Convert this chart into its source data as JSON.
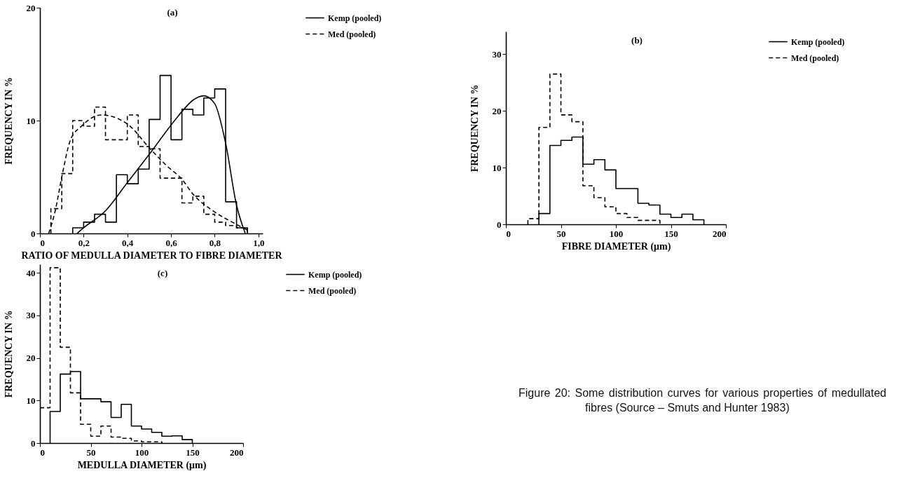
{
  "chart_data": [
    {
      "type": "step",
      "title": "(a)",
      "xlabel": "RATIO OF MEDULLA DIAMETER TO FIBRE DIAMETER",
      "ylabel": "FREQUENCY IN %",
      "xlim": [
        0,
        1.02
      ],
      "xticks": [
        0,
        {
          "value": 0.2,
          "label": "0,2"
        },
        {
          "value": 0.4,
          "label": "0,4"
        },
        {
          "value": 0.6,
          "label": "0,6"
        },
        {
          "value": 0.8,
          "label": "0,8"
        },
        {
          "value": 1,
          "label": "1,0"
        }
      ],
      "ylim": [
        0,
        20
      ],
      "yticks": [
        0,
        10,
        20
      ],
      "legend": "right",
      "series": [
        {
          "name": "Kemp (pooled)",
          "color": "#000000",
          "line_style": "solid",
          "x": [
            0.15,
            0.15,
            0.2,
            0.25,
            0.3,
            0.35,
            0.4,
            0.45,
            0.5,
            0.55,
            0.6,
            0.65,
            0.7,
            0.75,
            0.8,
            0.85,
            0.9,
            0.95
          ],
          "values": [
            0,
            0.5,
            1,
            1.7,
            1,
            5.2,
            4.4,
            5.7,
            10.1,
            14,
            8.3,
            11,
            10.5,
            12,
            12.8,
            2.8,
            0.5,
            0
          ]
        },
        {
          "name": "Med (pooled)",
          "color": "#000000",
          "line_style": "dashed",
          "x": [
            0.05,
            0.05,
            0.1,
            0.15,
            0.2,
            0.25,
            0.3,
            0.35,
            0.4,
            0.45,
            0.5,
            0.55,
            0.6,
            0.65,
            0.7,
            0.75,
            0.8,
            0.85,
            0.9,
            0.95
          ],
          "values": [
            0,
            2.2,
            5.3,
            10,
            9.5,
            11.2,
            8.3,
            8.3,
            10.5,
            7.7,
            7.5,
            4.9,
            4.9,
            2.7,
            3.3,
            1.7,
            1,
            0.7,
            0.5,
            0
          ]
        },
        {
          "type": "line",
          "color": "#000000",
          "line_style": "solid",
          "x": [
            0.17,
            0.2,
            0.3,
            0.4,
            0.5,
            0.6,
            0.65,
            0.7,
            0.75,
            0.8,
            0.85,
            0.9,
            0.94
          ],
          "values": [
            0,
            0.5,
            2,
            4.5,
            7,
            9.6,
            10.8,
            11.8,
            12.2,
            11.5,
            8,
            2.5,
            0
          ]
        },
        {
          "type": "line",
          "color": "#000000",
          "line_style": "dashed",
          "x": [
            0.04,
            0.07,
            0.1,
            0.14,
            0.19,
            0.28,
            0.4,
            0.5,
            0.58,
            0.65,
            0.7,
            0.8,
            0.9,
            0.95
          ],
          "values": [
            0,
            2,
            5,
            8.3,
            9.5,
            10.5,
            9.7,
            7.6,
            6,
            4.8,
            3.5,
            1.9,
            0.8,
            0.3
          ]
        }
      ]
    },
    {
      "type": "step",
      "title": "(b)",
      "xlabel": "FIBRE DIAMETER (μm)",
      "ylabel": "FREQUENCY IN %",
      "xlim": [
        0,
        200
      ],
      "xticks": [
        0,
        50,
        100,
        150,
        200
      ],
      "ylim": [
        0,
        34
      ],
      "yticks": [
        0,
        10,
        20,
        30
      ],
      "legend": "right",
      "annotations": [
        "Figure 20:  Some distribution curves for various properties of medullated fibres (Source – Smuts and Hunter 1983)"
      ],
      "series": [
        {
          "name": "Kemp (pooled)",
          "color": "#000000",
          "line_style": "solid",
          "x": [
            30,
            30,
            40,
            50,
            60,
            70,
            80,
            90,
            100,
            110,
            120,
            130,
            140,
            150,
            160,
            170,
            180
          ],
          "values": [
            0,
            1.9,
            13.9,
            14.8,
            15.4,
            10.6,
            11.4,
            9.6,
            6.3,
            6.3,
            3.7,
            3.4,
            1.8,
            1.2,
            1.8,
            0.8,
            0
          ]
        },
        {
          "name": "Med (pooled)",
          "color": "#000000",
          "line_style": "dashed",
          "x": [
            20,
            20,
            30,
            40,
            50,
            60,
            70,
            80,
            90,
            100,
            110,
            120,
            130,
            140
          ],
          "values": [
            0,
            1,
            17.1,
            26.5,
            19.3,
            18.1,
            6.8,
            4.7,
            3.1,
            1.9,
            1.2,
            0.7,
            0.7,
            0
          ]
        }
      ]
    },
    {
      "type": "step",
      "title": "(c)",
      "xlabel": "MEDULLA DIAMETER (μm)",
      "ylabel": "FREQUENCY IN %",
      "xlim": [
        0,
        200
      ],
      "xticks": [
        0,
        50,
        100,
        150,
        200
      ],
      "ylim": [
        0,
        42
      ],
      "yticks": [
        0,
        10,
        20,
        30,
        40
      ],
      "legend": "right",
      "series": [
        {
          "name": "Kemp (pooled)",
          "color": "#000000",
          "line_style": "solid",
          "x": [
            10,
            10,
            20,
            30,
            40,
            50,
            60,
            70,
            80,
            90,
            100,
            110,
            120,
            130,
            140,
            150
          ],
          "values": [
            0,
            7.4,
            16.2,
            16.8,
            10.4,
            10.4,
            9.7,
            6,
            9.1,
            4,
            3.3,
            2.5,
            1.6,
            1.7,
            0.8,
            0
          ]
        },
        {
          "name": "Med (pooled)",
          "color": "#000000",
          "line_style": "dashed",
          "x": [
            0,
            10,
            20,
            30,
            40,
            50,
            60,
            70,
            80,
            90,
            100,
            110,
            120
          ],
          "values": [
            8.3,
            41.2,
            22.5,
            11.8,
            4.4,
            1.6,
            4,
            1.4,
            1.1,
            0.5,
            0.3,
            0.3,
            0
          ]
        }
      ]
    }
  ]
}
